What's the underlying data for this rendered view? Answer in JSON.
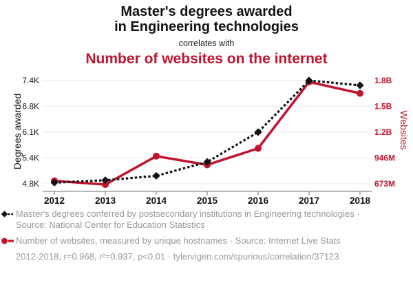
{
  "header": {
    "title_line1": "Master's degrees awarded",
    "title_line2": "in Engineering technologies",
    "connector": "correlates with",
    "subtitle": "Number of websites on the internet"
  },
  "colors": {
    "accent_red": "#c1122f",
    "series_black": "#111111",
    "legend_gray": "#999999",
    "gridline": "#f0f0f0",
    "axis": "#8a8a8a"
  },
  "chart_data": {
    "type": "line",
    "x": [
      2012,
      2013,
      2014,
      2015,
      2016,
      2017,
      2018
    ],
    "x_tick_labels": [
      "2012",
      "2013",
      "2014",
      "2015",
      "2016",
      "2017",
      "2018"
    ],
    "grid": true,
    "legend_position": "below",
    "left_axis": {
      "label": "Degrees awarded",
      "tick_labels": [
        "4.8K",
        "5.4K",
        "6.1K",
        "6.8K",
        "7.4K"
      ],
      "min": 4800,
      "max": 7400
    },
    "right_axis": {
      "label": "Websites",
      "tick_labels": [
        "673M",
        "946M",
        "1.2B",
        "1.5B",
        "1.8B"
      ],
      "min": 673,
      "max": 1800
    },
    "series": [
      {
        "id": "masters-degrees",
        "legend": "Master's degrees conferred by postsecondary institutions in Engineering technologies · Source: National Center for Education Statistics",
        "axis": "left",
        "unit": "degrees",
        "color": "#111111",
        "marker": "diamond",
        "dash": "3.5 3",
        "width": 3.2,
        "values": [
          4830,
          4890,
          5000,
          5350,
          6100,
          7400,
          7280
        ]
      },
      {
        "id": "websites",
        "legend": "Number of websites, measured by unique hostnames · Source: Internet Live Stats",
        "axis": "right",
        "unit": "millions of hostnames",
        "color": "#c1122f",
        "marker": "circle",
        "dash": "",
        "width": 3.5,
        "values": [
          705,
          665,
          975,
          880,
          1060,
          1785,
          1660
        ]
      }
    ]
  },
  "footer": {
    "stats": "2012-2018, r=0.968, r²=0.937, p<0.01 · tylervigen.com/spurious/correlation/37123"
  }
}
